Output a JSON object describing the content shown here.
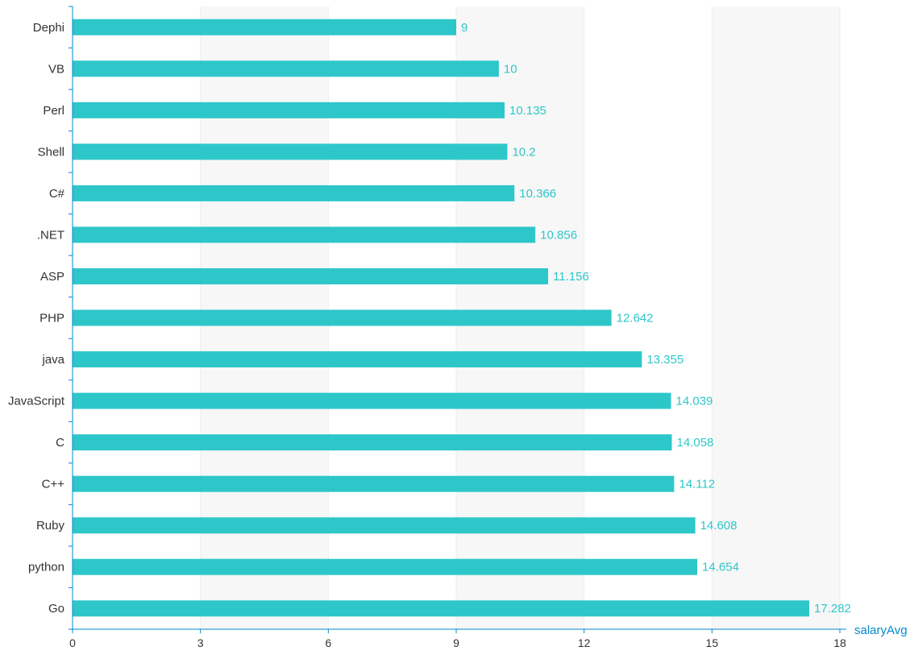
{
  "chart_data": {
    "type": "bar",
    "orientation": "horizontal",
    "categories": [
      "Dephi",
      "VB",
      "Perl",
      "Shell",
      "C#",
      ".NET",
      "ASP",
      "PHP",
      "java",
      "JavaScript",
      "C",
      "C++",
      "Ruby",
      "python",
      "Go"
    ],
    "series": [
      {
        "values": [
          9,
          10,
          10.135,
          10.2,
          10.366,
          10.856,
          11.156,
          12.642,
          13.355,
          14.039,
          14.058,
          14.112,
          14.608,
          14.654,
          17.282
        ]
      }
    ],
    "value_labels": [
      "9",
      "10",
      "10.135",
      "10.2",
      "10.366",
      "10.856",
      "11.156",
      "12.642",
      "13.355",
      "14.039",
      "14.058",
      "14.112",
      "14.608",
      "14.654",
      "17.282"
    ],
    "xlabel": "salaryAvg",
    "ylabel": "",
    "xlim": [
      0,
      18
    ],
    "x_ticks": [
      0,
      3,
      6,
      9,
      12,
      15,
      18
    ],
    "x_tick_labels": [
      "0",
      "3",
      "6",
      "9",
      "12",
      "15",
      "18"
    ],
    "grid": true,
    "legend": "none",
    "colors": {
      "bar": "#2ec7c9",
      "data_label": "#2ec7c9",
      "axis_line": "#008acd",
      "axis_name": "#008acd",
      "split_area": "#f7f7f7",
      "split_line": "#eeeeee",
      "text": "#333333"
    }
  }
}
